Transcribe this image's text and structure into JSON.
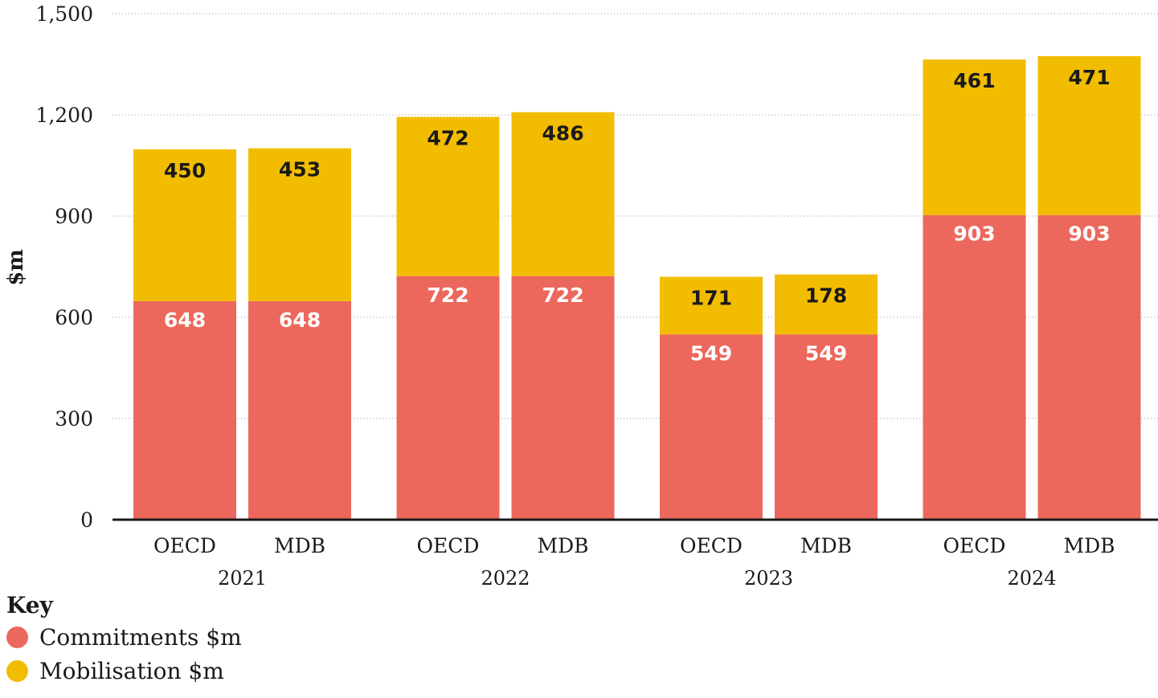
{
  "chart_data": {
    "type": "bar",
    "stacked": true,
    "ylabel": "$m",
    "ylim": [
      0,
      1500
    ],
    "yticks": [
      "0",
      "300",
      "600",
      "900",
      "1,200",
      "1,500"
    ],
    "ytick_values": [
      0,
      300,
      600,
      900,
      1200,
      1500
    ],
    "grid": true,
    "groups": [
      {
        "label": "2021",
        "bars": [
          {
            "label": "OECD",
            "commitments": 648,
            "mobilisation": 450
          },
          {
            "label": "MDB",
            "commitments": 648,
            "mobilisation": 453
          }
        ]
      },
      {
        "label": "2022",
        "bars": [
          {
            "label": "OECD",
            "commitments": 722,
            "mobilisation": 472
          },
          {
            "label": "MDB",
            "commitments": 722,
            "mobilisation": 486
          }
        ]
      },
      {
        "label": "2023",
        "bars": [
          {
            "label": "OECD",
            "commitments": 549,
            "mobilisation": 171
          },
          {
            "label": "MDB",
            "commitments": 549,
            "mobilisation": 178
          }
        ]
      },
      {
        "label": "2024",
        "bars": [
          {
            "label": "OECD",
            "commitments": 903,
            "mobilisation": 461
          },
          {
            "label": "MDB",
            "commitments": 903,
            "mobilisation": 471
          }
        ]
      }
    ],
    "series": [
      {
        "key": "commitments",
        "name": "Commitments $m",
        "color": "#ec685c"
      },
      {
        "key": "mobilisation",
        "name": "Mobilisation $m",
        "color": "#f2bd00"
      }
    ],
    "legend": {
      "title": "Key",
      "placement": "bottom-left"
    }
  }
}
